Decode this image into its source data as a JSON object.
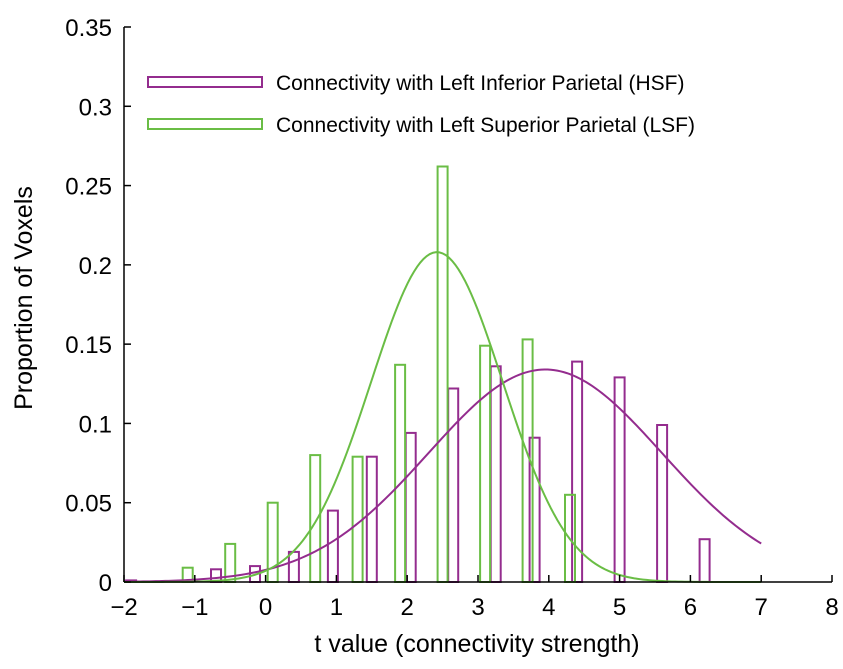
{
  "chart_data": {
    "type": "bar",
    "xlabel": "t value (connectivity strength)",
    "ylabel": "Proportion of Voxels",
    "xlim": [
      -2,
      8
    ],
    "ylim": [
      0,
      0.35
    ],
    "xticks": [
      -2,
      -1,
      0,
      1,
      2,
      3,
      4,
      5,
      6,
      7,
      8
    ],
    "xtick_labels": [
      "−2",
      "−1",
      "0",
      "1",
      "2",
      "3",
      "4",
      "5",
      "6",
      "7",
      "8"
    ],
    "yticks": [
      0,
      0.05,
      0.1,
      0.15,
      0.2,
      0.25,
      0.3,
      0.35
    ],
    "ytick_labels": [
      "0",
      "0.05",
      "0.1",
      "0.15",
      "0.2",
      "0.25",
      "0.3",
      "0.35"
    ],
    "grid": false,
    "legend_position": "top",
    "series": [
      {
        "name": "Connectivity with Left Inferior Parietal (HSF)",
        "color": "#942C8E",
        "bar_offset": -0.1,
        "x": [
          -1.8,
          -0.6,
          -0.05,
          0.5,
          1.05,
          1.6,
          2.15,
          2.75,
          3.35,
          3.9,
          4.5,
          5.1,
          5.7,
          6.3
        ],
        "values": [
          0.001,
          0.008,
          0.01,
          0.019,
          0.045,
          0.079,
          0.094,
          0.122,
          0.136,
          0.091,
          0.139,
          0.129,
          0.099,
          0.027
        ],
        "fit": {
          "type": "gaussian",
          "mean": 3.95,
          "sd": 1.65,
          "peak": 0.134,
          "range": [
            -2,
            7
          ]
        }
      },
      {
        "name": "Connectivity with Left Superior Parietal (LSF)",
        "color": "#6ABD45",
        "bar_offset": 0.1,
        "x": [
          -1.2,
          -0.6,
          0.0,
          0.6,
          1.2,
          1.8,
          2.4,
          3.0,
          3.6,
          4.2
        ],
        "values": [
          0.009,
          0.024,
          0.05,
          0.08,
          0.079,
          0.137,
          0.262,
          0.149,
          0.153,
          0.055
        ],
        "fit": {
          "type": "gaussian",
          "mean": 2.42,
          "sd": 0.93,
          "peak": 0.208,
          "range": [
            -2,
            7
          ]
        }
      }
    ]
  }
}
